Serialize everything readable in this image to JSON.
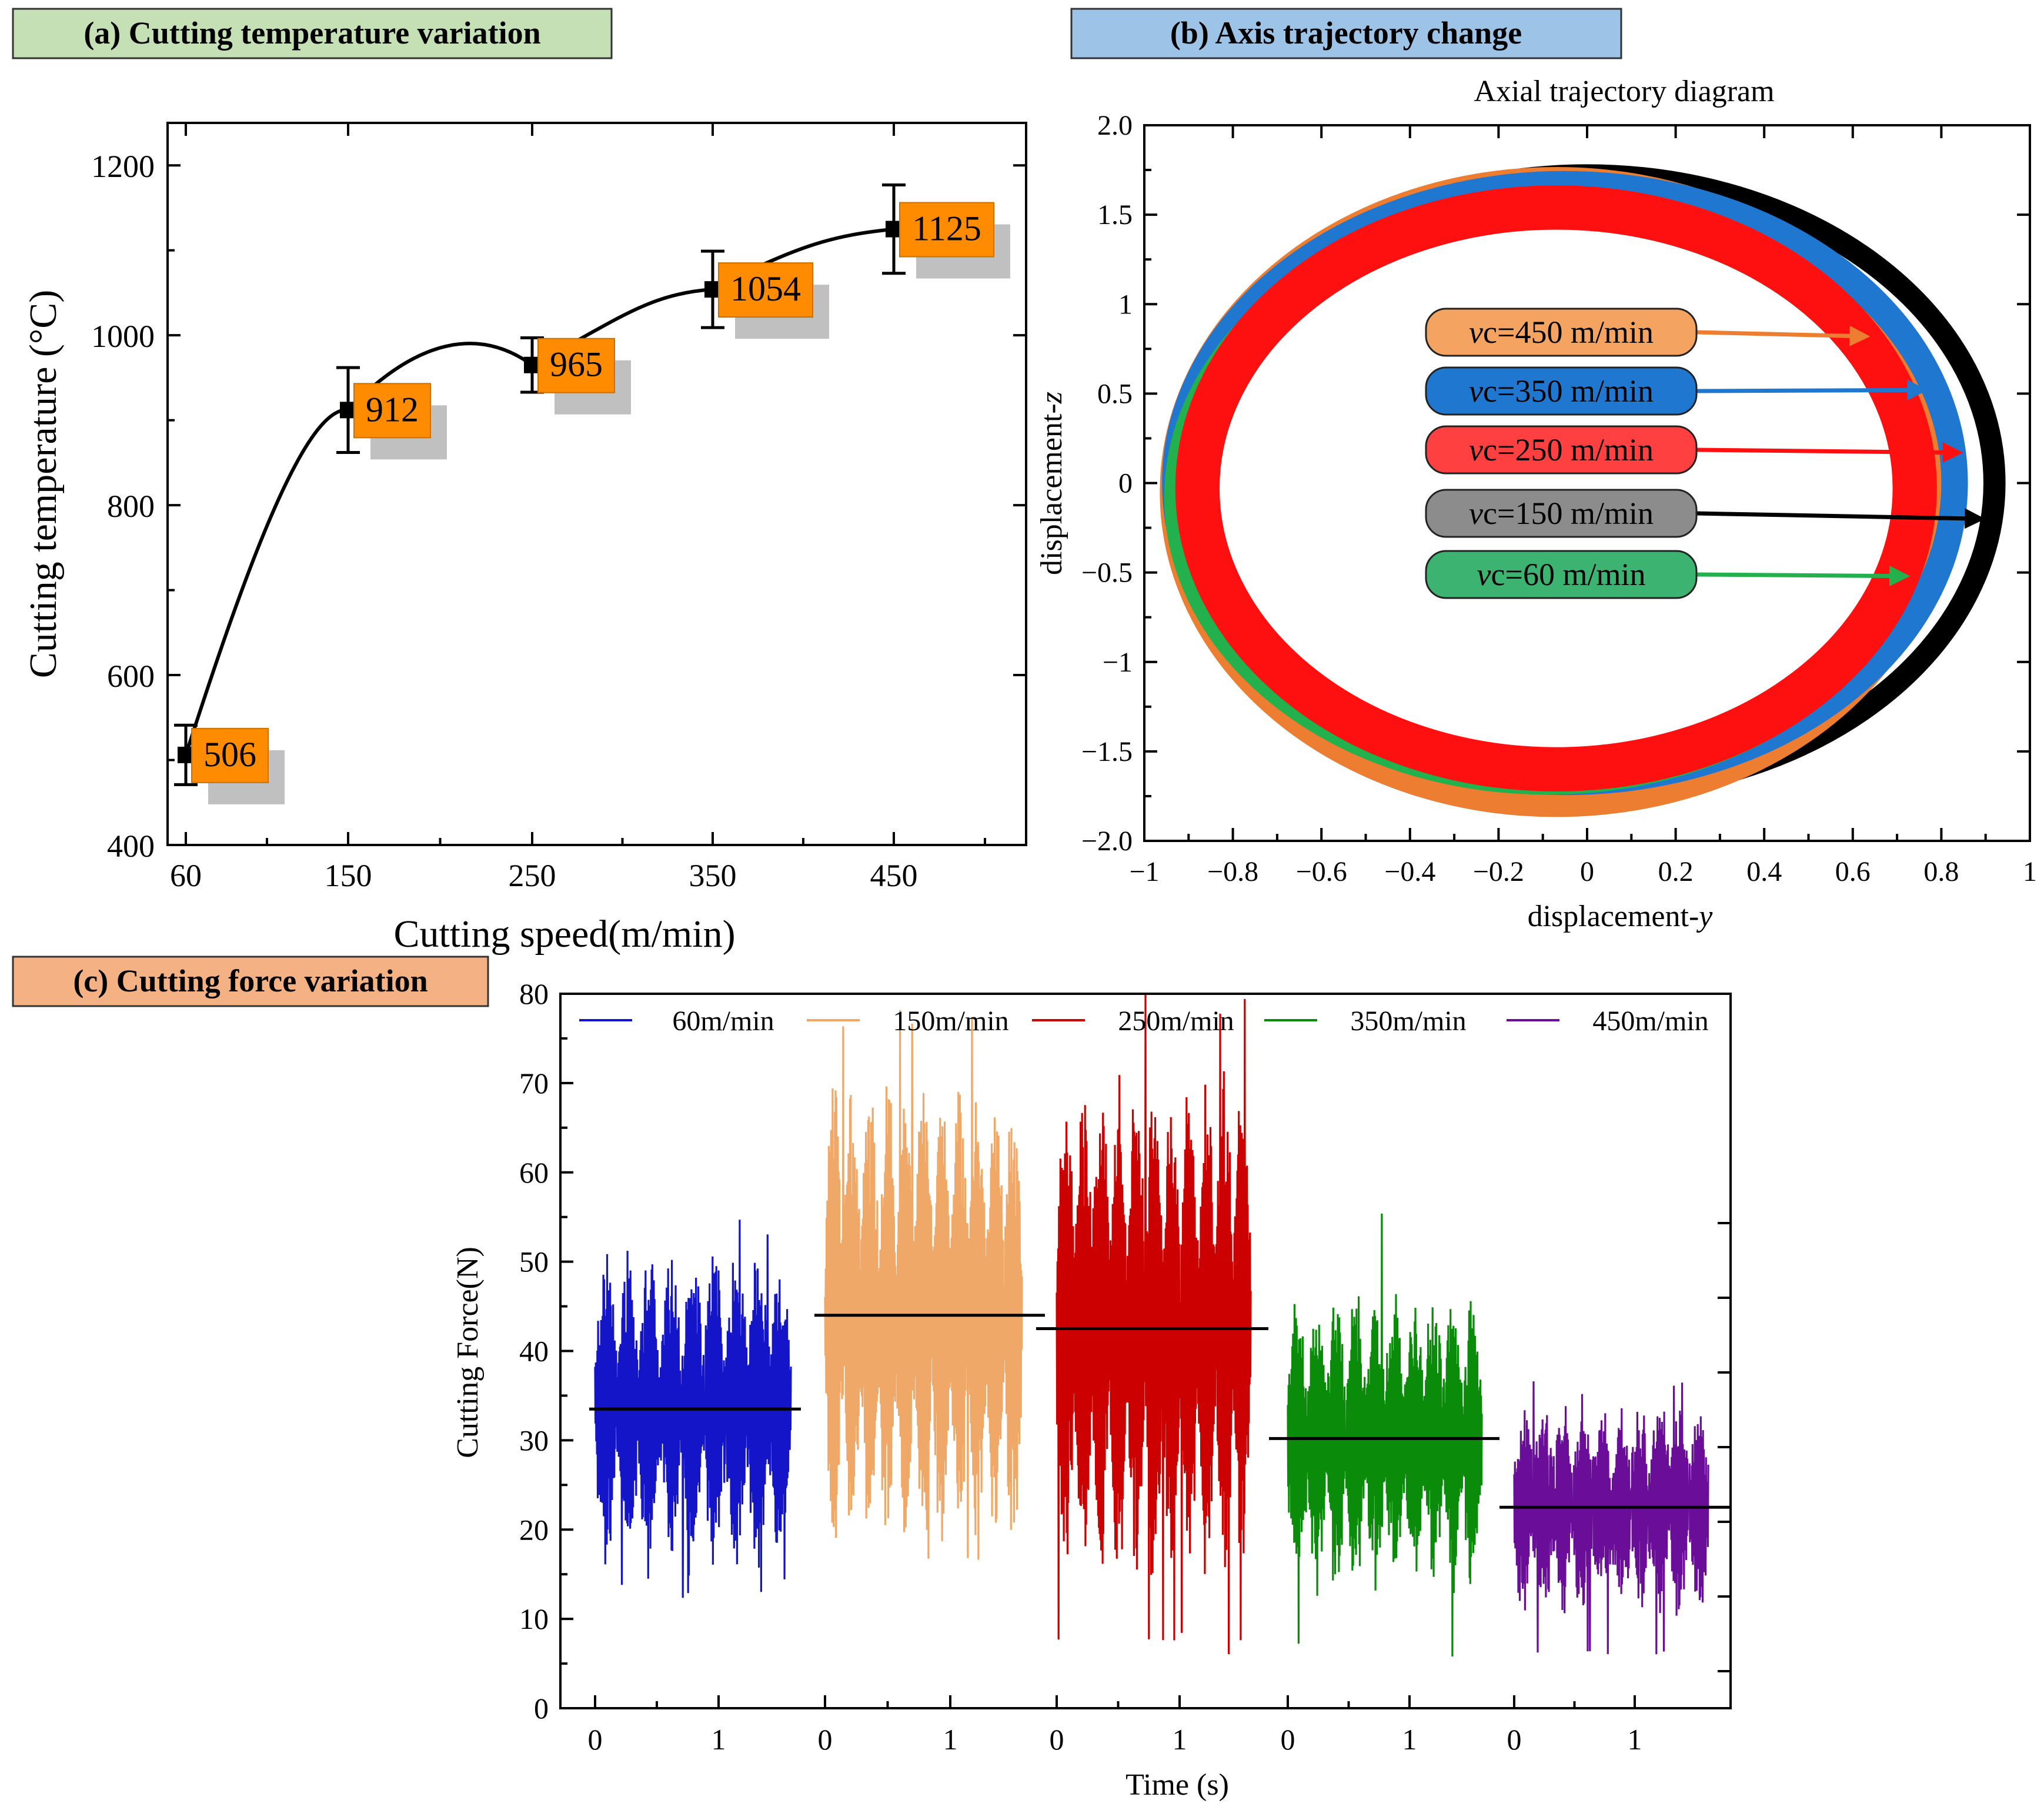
{
  "chart_data": [
    {
      "panel": "a",
      "type": "line",
      "header": "(a) Cutting temperature variation",
      "header_color": "#c5e0b4",
      "title": "",
      "xlabel": "Cutting speed(m/min)",
      "ylabel": "Cutting temperature (°C)",
      "x": [
        60,
        150,
        250,
        350,
        450
      ],
      "xticks": [
        "60",
        "150",
        "250",
        "350",
        "450"
      ],
      "values": [
        506,
        912,
        965,
        1054,
        1125
      ],
      "labels": [
        "506",
        "912",
        "965",
        "1054",
        "1125"
      ],
      "errors": [
        35,
        50,
        32,
        45,
        52
      ],
      "ylim": [
        400,
        1250
      ],
      "yticks": [
        400,
        600,
        800,
        1000,
        1200
      ],
      "label_color": "#ff8c00",
      "shadow_color": "#c0c0c0"
    },
    {
      "panel": "b",
      "type": "line",
      "header": "(b) Axis trajectory change",
      "header_color": "#9dc3e6",
      "title": "Axial trajectory diagram",
      "xlabel_main": "displacement-",
      "xlabel_italic": "y",
      "ylabel_main": "displacement-",
      "ylabel_italic": "z",
      "xlim": [
        -1,
        1
      ],
      "ylim": [
        -2,
        2
      ],
      "xticks": [
        "−1",
        "−0.8",
        "−0.6",
        "−0.4",
        "−0.2",
        "0",
        "0.2",
        "0.4",
        "0.6",
        "0.8",
        "1"
      ],
      "yticks": [
        "−2.0",
        "−1.5",
        "−1",
        "−0.5",
        "0",
        "0.5",
        "1",
        "1.5",
        "2.0"
      ],
      "series": [
        {
          "name": "150 m/min",
          "color": "#000000",
          "cx": 0.0,
          "cy": 0.0,
          "rx": 0.92,
          "rz": 1.72,
          "thickness": 0.05
        },
        {
          "name": "450 m/min",
          "color": "#ed7d31",
          "cx": -0.07,
          "cy": -0.05,
          "rx": 0.86,
          "rz": 1.73,
          "thickness": 0.07
        },
        {
          "name": "350 m/min",
          "color": "#1f77d0",
          "cx": -0.05,
          "cy": 0.0,
          "rx": 0.88,
          "rz": 1.67,
          "thickness": 0.06
        },
        {
          "name": "60 m/min",
          "color": "#22b14c",
          "cx": -0.09,
          "cy": -0.08,
          "rx": 0.84,
          "rz": 1.6,
          "thickness": 0.05
        },
        {
          "name": "250 m/min",
          "color": "#ff1010",
          "cx": -0.07,
          "cy": -0.03,
          "rx": 0.81,
          "rz": 1.57,
          "thickness": 0.1
        }
      ],
      "legend": [
        {
          "italic": "v",
          "text": "c=450 m/min",
          "fill": "#f4a460",
          "arrow": "#ed7d31",
          "tip_x": 0.63,
          "tip_y": 0.82
        },
        {
          "italic": "v",
          "text": "c=350 m/min",
          "fill": "#1f77d0",
          "arrow": "#1f77d0",
          "tip_x": 0.76,
          "tip_y": 0.52
        },
        {
          "italic": "v",
          "text": "c=250 m/min",
          "fill": "#ff4040",
          "arrow": "#ff1010",
          "tip_x": 0.84,
          "tip_y": 0.17
        },
        {
          "italic": "v",
          "text": "c=150 m/min",
          "fill": "#8c8c8c",
          "arrow": "#000000",
          "tip_x": 0.89,
          "tip_y": -0.2
        },
        {
          "italic": "v",
          "text": "c=60 m/min",
          "fill": "#3cb371",
          "arrow": "#22b14c",
          "tip_x": 0.72,
          "tip_y": -0.52
        }
      ]
    },
    {
      "panel": "c",
      "type": "line",
      "header": "(c) Cutting force variation",
      "header_color": "#f4b183",
      "xlabel": "Time (s)",
      "ylabel": "Cutting Force(N)",
      "ylim": [
        0,
        80
      ],
      "yticks": [
        "0",
        "10",
        "20",
        "30",
        "40",
        "50",
        "60",
        "70",
        "80"
      ],
      "xticks": [
        "0",
        "1"
      ],
      "series": [
        {
          "name": "60m/min",
          "color": "#1414c8",
          "mean": 33.5,
          "amp": 16,
          "min": 12,
          "max": 56,
          "periods": 9
        },
        {
          "name": "150m/min",
          "color": "#f0a868",
          "mean": 44,
          "amp": 25,
          "min": 14,
          "max": 79,
          "periods": 11
        },
        {
          "name": "250m/min",
          "color": "#cc0000",
          "mean": 42.5,
          "amp": 27,
          "min": 6,
          "max": 80,
          "periods": 11
        },
        {
          "name": "350m/min",
          "color": "#0a8c0a",
          "mean": 30.2,
          "amp": 15,
          "min": 5,
          "max": 56,
          "periods": 10
        },
        {
          "name": "450m/min",
          "color": "#6a0e9a",
          "mean": 22.5,
          "amp": 10,
          "min": 3.5,
          "max": 38,
          "periods": 10
        }
      ]
    }
  ]
}
